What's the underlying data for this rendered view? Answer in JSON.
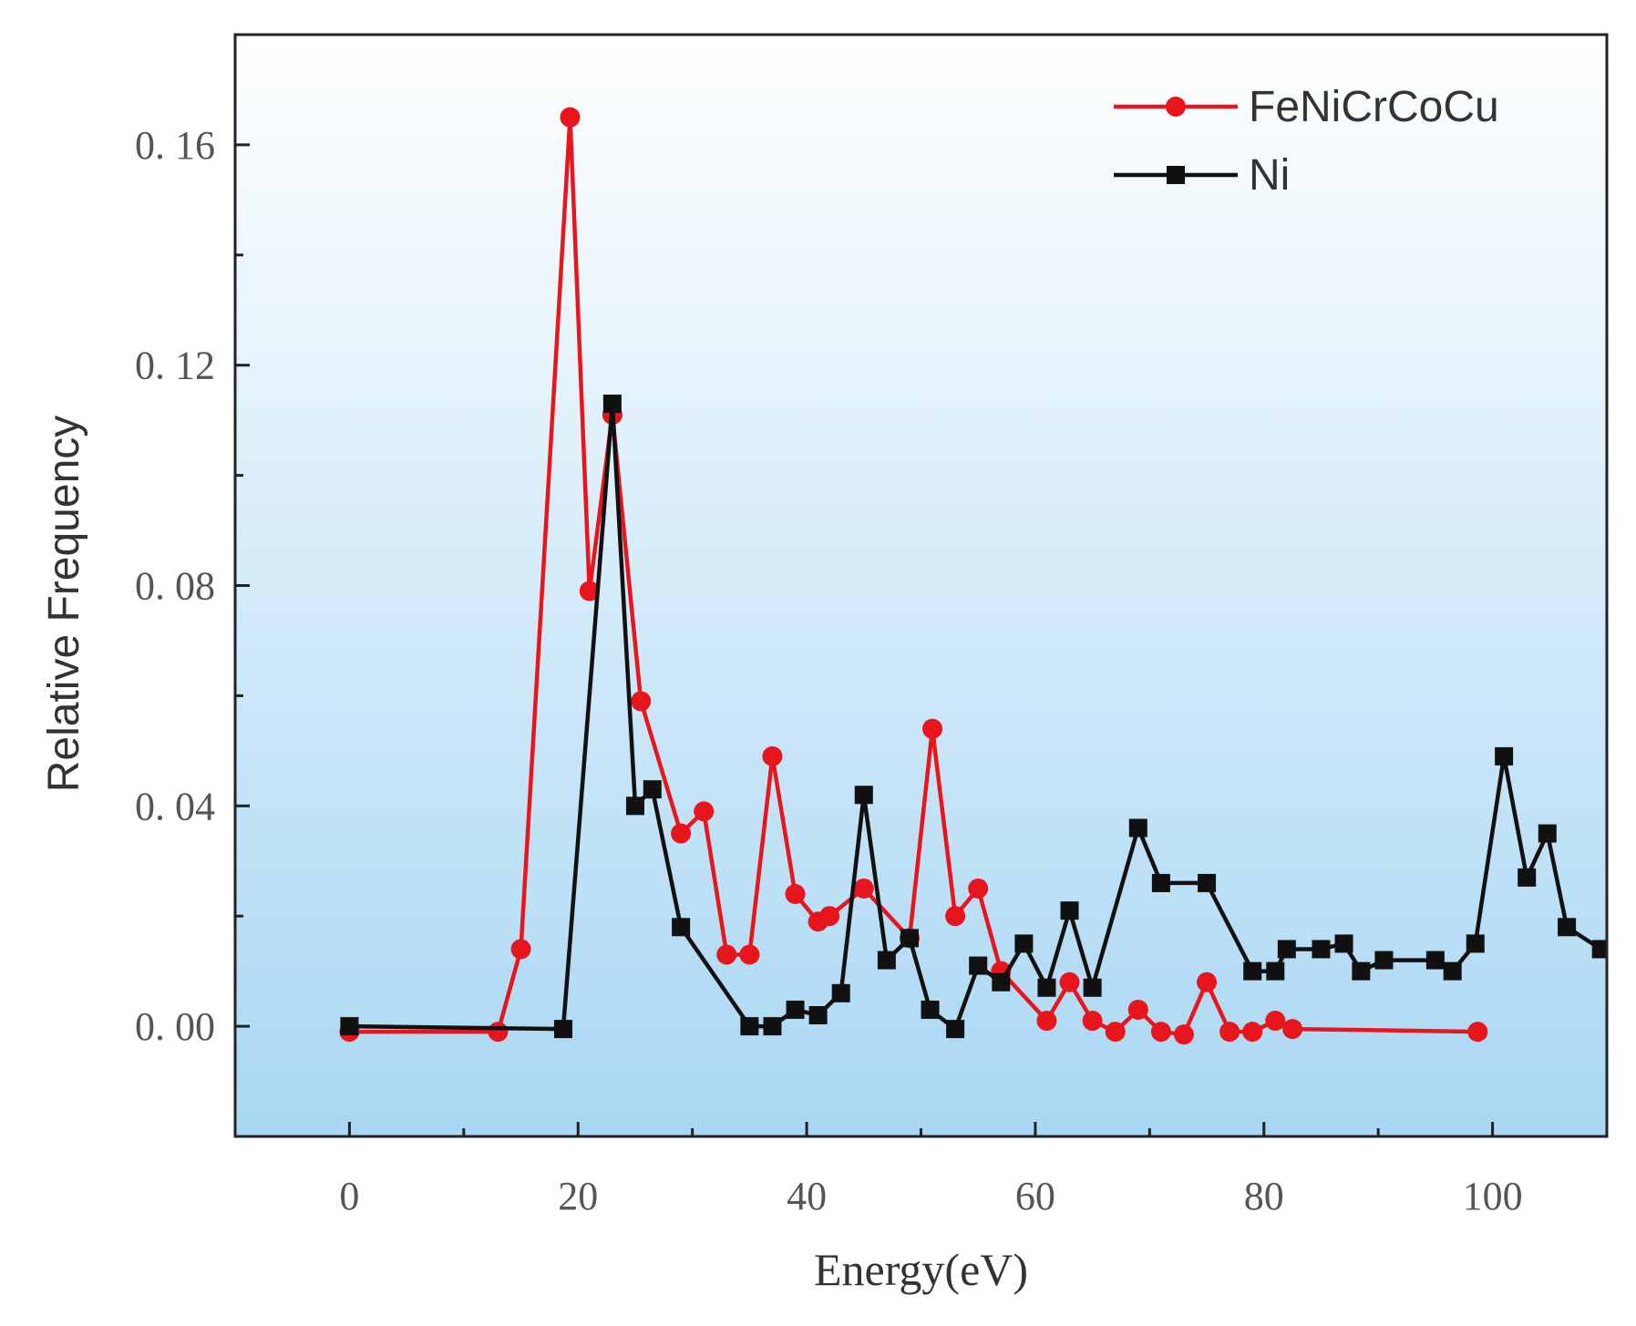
{
  "chart_data": {
    "type": "line",
    "title": "",
    "xlabel": "Energy(eV)",
    "ylabel": "Relative Frequency",
    "xlim": [
      -10,
      110
    ],
    "ylim": [
      -0.02,
      0.18
    ],
    "xticks": [
      0,
      20,
      40,
      60,
      80,
      100
    ],
    "xtick_labels": [
      "0",
      "20",
      "40",
      "60",
      "80",
      "100"
    ],
    "yticks": [
      0,
      0.04,
      0.08,
      0.12,
      0.16
    ],
    "ytick_labels": [
      "0. 00",
      "0. 04",
      "0. 08",
      "0. 12",
      "0. 16"
    ],
    "legend_position": "top-right",
    "background": {
      "top": "#ffffff",
      "bottom": "#a9d7f3"
    },
    "series": [
      {
        "name": "FeNiCrCoCu",
        "color": "#e8161c",
        "marker": "circle",
        "points": [
          [
            0,
            -0.001
          ],
          [
            13,
            -0.001
          ],
          [
            15,
            0.014
          ],
          [
            19.3,
            0.165
          ],
          [
            21,
            0.079
          ],
          [
            23,
            0.111
          ],
          [
            25.5,
            0.059
          ],
          [
            29,
            0.035
          ],
          [
            31,
            0.039
          ],
          [
            33,
            0.013
          ],
          [
            35,
            0.013
          ],
          [
            37,
            0.049
          ],
          [
            39,
            0.024
          ],
          [
            41,
            0.019
          ],
          [
            42,
            0.02
          ],
          [
            45,
            0.025
          ],
          [
            49,
            0.016
          ],
          [
            51,
            0.054
          ],
          [
            53,
            0.02
          ],
          [
            55,
            0.025
          ],
          [
            57,
            0.01
          ],
          [
            61,
            0.001
          ],
          [
            63,
            0.008
          ],
          [
            65,
            0.001
          ],
          [
            67,
            -0.001
          ],
          [
            69,
            0.003
          ],
          [
            71,
            -0.001
          ],
          [
            73,
            -0.0015
          ],
          [
            75,
            0.008
          ],
          [
            77,
            -0.001
          ],
          [
            79,
            -0.001
          ],
          [
            81,
            0.001
          ],
          [
            82.5,
            -0.0005
          ],
          [
            98.7,
            -0.001
          ]
        ]
      },
      {
        "name": "Ni",
        "color": "#111111",
        "marker": "square",
        "points": [
          [
            0,
            0.0
          ],
          [
            18.7,
            -0.0005
          ],
          [
            23,
            0.113
          ],
          [
            25,
            0.04
          ],
          [
            26.5,
            0.043
          ],
          [
            29,
            0.018
          ],
          [
            35,
            0.0
          ],
          [
            37,
            0.0
          ],
          [
            39,
            0.003
          ],
          [
            41,
            0.002
          ],
          [
            43,
            0.006
          ],
          [
            45,
            0.042
          ],
          [
            47,
            0.012
          ],
          [
            49,
            0.016
          ],
          [
            50.8,
            0.003
          ],
          [
            53,
            -0.0005
          ],
          [
            55,
            0.011
          ],
          [
            57,
            0.008
          ],
          [
            59,
            0.015
          ],
          [
            61,
            0.007
          ],
          [
            63,
            0.021
          ],
          [
            65,
            0.007
          ],
          [
            69,
            0.036
          ],
          [
            71,
            0.026
          ],
          [
            75,
            0.026
          ],
          [
            79,
            0.01
          ],
          [
            81,
            0.01
          ],
          [
            82,
            0.014
          ],
          [
            85,
            0.014
          ],
          [
            87,
            0.015
          ],
          [
            88.5,
            0.01
          ],
          [
            90.5,
            0.012
          ],
          [
            95,
            0.012
          ],
          [
            96.5,
            0.01
          ],
          [
            98.5,
            0.015
          ],
          [
            101,
            0.049
          ],
          [
            103,
            0.027
          ],
          [
            104.8,
            0.035
          ],
          [
            106.5,
            0.018
          ],
          [
            109.5,
            0.014
          ]
        ]
      }
    ]
  }
}
